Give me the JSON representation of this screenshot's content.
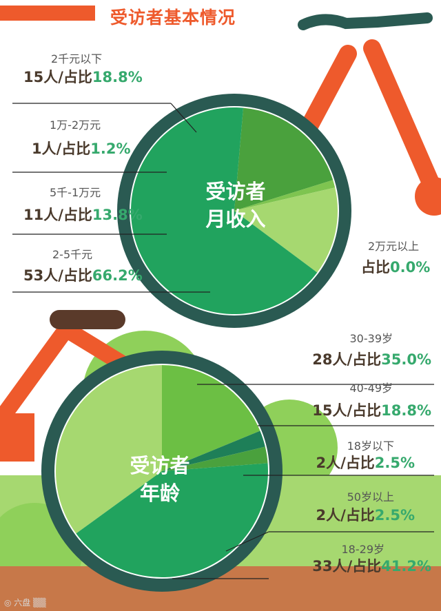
{
  "title": "受访者基本情况",
  "colors": {
    "accent": "#ee5a2c",
    "rim": "#2a5a52",
    "percent_text": "#36a96d",
    "count_text": "#4a3a2c"
  },
  "chart_data": [
    {
      "type": "pie",
      "title": "受访者月收入",
      "center_lines": [
        "受访者",
        "月收入"
      ],
      "slices": [
        {
          "label": "2千元以下",
          "count": "15人",
          "percent": "18.8%",
          "value": 18.8,
          "color": "#4aa13d",
          "prefix": "/占比"
        },
        {
          "label": "1万-2万元",
          "count": "1人",
          "percent": "1.2%",
          "value": 1.2,
          "color": "#7ec450",
          "prefix": "/占比"
        },
        {
          "label": "5千-1万元",
          "count": "11人",
          "percent": "13.8%",
          "value": 13.8,
          "color": "#a6d870",
          "prefix": "/占比"
        },
        {
          "label": "2-5千元",
          "count": "53人",
          "percent": "66.2%",
          "value": 66.2,
          "color": "#21a35e",
          "prefix": "/占比"
        },
        {
          "label": "2万元以上",
          "count": "",
          "percent": "0.0%",
          "value": 0.0,
          "color": "#21a35e",
          "prefix": "占比"
        }
      ]
    },
    {
      "type": "pie",
      "title": "受访者年龄",
      "center_lines": [
        "受访者",
        "年龄"
      ],
      "slices": [
        {
          "label": "30-39岁",
          "count": "28人",
          "percent": "35.0%",
          "value": 35.0,
          "color": "#a6d870",
          "prefix": "/占比"
        },
        {
          "label": "40-49岁",
          "count": "15人",
          "percent": "18.8%",
          "value": 18.8,
          "color": "#6cbf44",
          "prefix": "/占比"
        },
        {
          "label": "18岁以下",
          "count": "2人",
          "percent": "2.5%",
          "value": 2.5,
          "color": "#1e7f58",
          "prefix": "/占比"
        },
        {
          "label": "50岁以上",
          "count": "2人",
          "percent": "2.5%",
          "value": 2.5,
          "color": "#4aa13d",
          "prefix": "/占比"
        },
        {
          "label": "18-29岁",
          "count": "33人",
          "percent": "41.2%",
          "value": 41.2,
          "color": "#21a35e",
          "prefix": "/占比"
        }
      ]
    }
  ]
}
